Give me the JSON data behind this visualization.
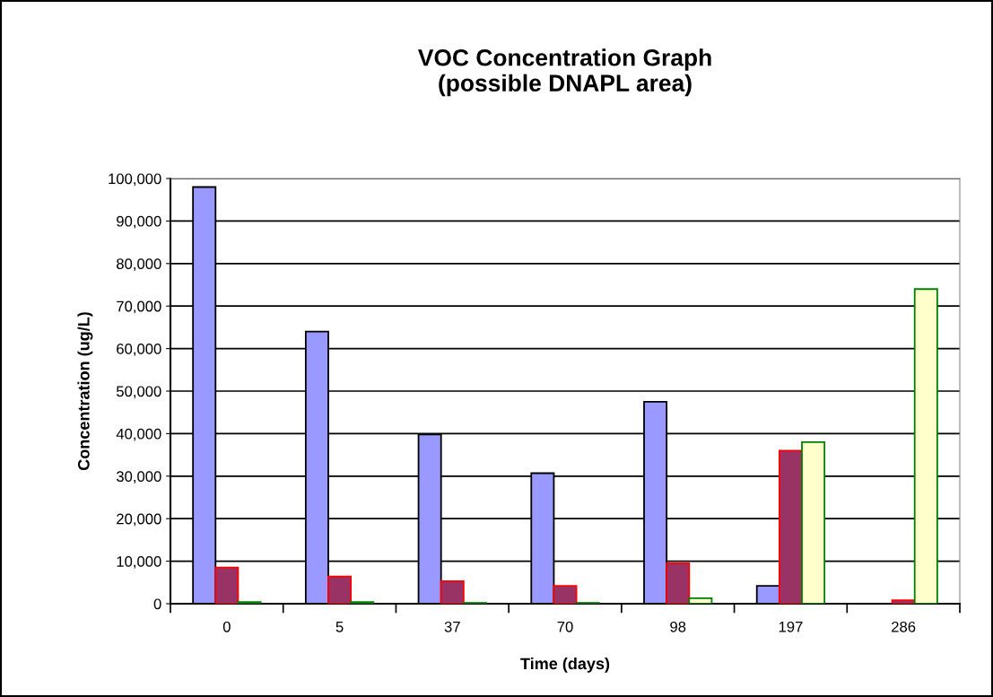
{
  "chart_data": {
    "type": "bar",
    "title": "VOC Concentration Graph\n(possible DNAPL area)",
    "xlabel": "Time (days)",
    "ylabel": "Concentration (ug/L)",
    "categories": [
      "0",
      "5",
      "37",
      "70",
      "98",
      "197",
      "286"
    ],
    "series": [
      {
        "color": "#9999ff",
        "values": [
          98000,
          64000,
          39800,
          30700,
          47500,
          4200,
          null
        ]
      },
      {
        "color": "#993366",
        "values": [
          8500,
          6400,
          5300,
          4200,
          9500,
          36000,
          800
        ]
      },
      {
        "color": "#ffffcc",
        "values": [
          400,
          400,
          200,
          200,
          1300,
          38000,
          74000
        ]
      }
    ],
    "ylim": [
      0,
      100000
    ],
    "yticks": [
      {
        "value": 0,
        "label": "0"
      },
      {
        "value": 10000,
        "label": "10,000"
      },
      {
        "value": 20000,
        "label": "20,000"
      },
      {
        "value": 30000,
        "label": "30,000"
      },
      {
        "value": 40000,
        "label": "40,000"
      },
      {
        "value": 50000,
        "label": "50,000"
      },
      {
        "value": 60000,
        "label": "60,000"
      },
      {
        "value": 70000,
        "label": "70,000"
      },
      {
        "value": 80000,
        "label": "80,000"
      },
      {
        "value": 90000,
        "label": "90,000"
      },
      {
        "value": 100000,
        "label": "100,000"
      }
    ],
    "grid": "y",
    "legend": false
  }
}
